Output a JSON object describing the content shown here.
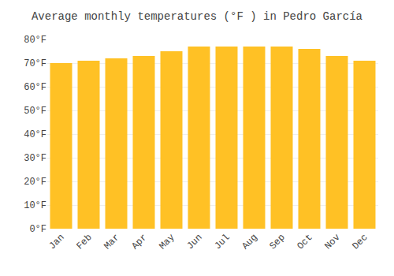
{
  "chart_data": {
    "type": "bar",
    "title": "Average monthly temperatures (°F ) in Pedro García",
    "categories": [
      "Jan",
      "Feb",
      "Mar",
      "Apr",
      "May",
      "Jun",
      "Jul",
      "Aug",
      "Sep",
      "Oct",
      "Nov",
      "Dec"
    ],
    "values": [
      70,
      71,
      72,
      73,
      75,
      77,
      77,
      77,
      77,
      76,
      73,
      71
    ],
    "color": "#FFC125",
    "ylim": [
      0,
      80
    ],
    "yticks": [
      {
        "value": 0,
        "label": "0°F"
      },
      {
        "value": 10,
        "label": "10°F"
      },
      {
        "value": 20,
        "label": "20°F"
      },
      {
        "value": 30,
        "label": "30°F"
      },
      {
        "value": 40,
        "label": "40°F"
      },
      {
        "value": 50,
        "label": "50°F"
      },
      {
        "value": 60,
        "label": "60°F"
      },
      {
        "value": 70,
        "label": "70°F"
      },
      {
        "value": 80,
        "label": "80°F"
      }
    ],
    "grid": true
  }
}
